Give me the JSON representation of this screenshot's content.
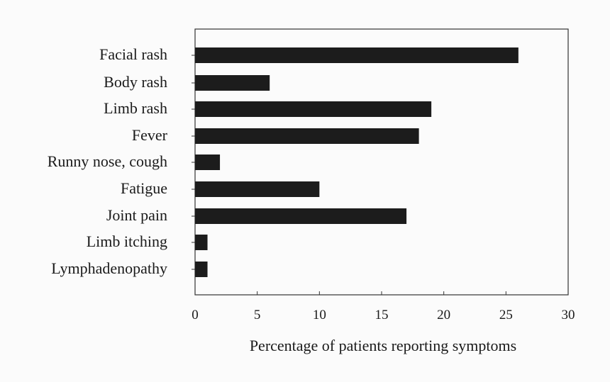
{
  "chart_data": {
    "type": "bar",
    "orientation": "horizontal",
    "categories": [
      "Facial rash",
      "Body rash",
      "Limb rash",
      "Fever",
      "Runny nose, cough",
      "Fatigue",
      "Joint pain",
      "Limb itching",
      "Lymphadenopathy"
    ],
    "values": [
      26,
      6,
      19,
      18,
      2,
      10,
      17,
      1,
      1
    ],
    "xlabel": "Percentage of patients reporting symptoms",
    "ylabel": "",
    "xlim": [
      0,
      30
    ],
    "xticks": [
      0,
      5,
      10,
      15,
      20,
      25,
      30
    ],
    "grid": false,
    "bar_color": "#1c1c1c",
    "frame_color": "#333333"
  }
}
